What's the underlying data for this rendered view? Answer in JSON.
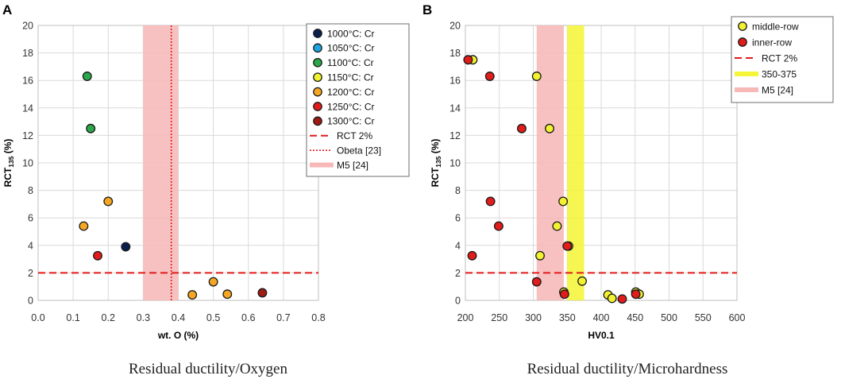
{
  "chart_data": [
    {
      "type": "scatter",
      "panel_label": "A",
      "xlabel": "wt. O (%)",
      "ylabel": "RCT",
      "ylabel_sub": "135",
      "ylabel_unit": "(%)",
      "xlim": [
        0.0,
        0.8
      ],
      "ylim": [
        0,
        20
      ],
      "x_ticks": [
        "0.0",
        "0.1",
        "0.2",
        "0.3",
        "0.4",
        "0.5",
        "0.6",
        "0.7",
        "0.8"
      ],
      "y_ticks": [
        "0",
        "2",
        "4",
        "6",
        "8",
        "10",
        "12",
        "14",
        "16",
        "18",
        "20"
      ],
      "caption": "Residual ductility/Oxygen",
      "series": [
        {
          "name": "1000°C: Cr",
          "color": "#0b1f4d",
          "points": [
            [
              0.25,
              3.9
            ]
          ]
        },
        {
          "name": "1050°C: Cr",
          "color": "#1fa3e0",
          "points": []
        },
        {
          "name": "1100°C: Cr",
          "color": "#2ba84a",
          "points": [
            [
              0.14,
              16.3
            ],
            [
              0.15,
              12.5
            ]
          ]
        },
        {
          "name": "1150°C: Cr",
          "color": "#f2f230",
          "points": []
        },
        {
          "name": "1200°C: Cr",
          "color": "#f5a623",
          "points": [
            [
              0.2,
              7.2
            ],
            [
              0.13,
              5.4
            ],
            [
              0.5,
              1.35
            ],
            [
              0.54,
              0.45
            ],
            [
              0.44,
              0.4
            ]
          ]
        },
        {
          "name": "1250°C: Cr",
          "color": "#e21b1b",
          "points": [
            [
              0.17,
              3.25
            ]
          ]
        },
        {
          "name": "1300°C: Cr",
          "color": "#9e1a12",
          "points": [
            [
              0.64,
              0.55
            ]
          ]
        }
      ],
      "reference_lines": [
        {
          "name": "RCT 2%",
          "axis": "y",
          "value": 2,
          "color": "#e21b1b",
          "style": "dashed"
        },
        {
          "name": "Obeta [23]",
          "axis": "x",
          "value": 0.38,
          "color": "#e21b1b",
          "style": "dotted"
        }
      ],
      "bands": [
        {
          "name": "M5 [24]",
          "axis": "x",
          "range": [
            0.3,
            0.4
          ],
          "color": "#f7b8b8"
        }
      ],
      "legend_order": [
        "1000°C: Cr",
        "1050°C: Cr",
        "1100°C: Cr",
        "1150°C: Cr",
        "1200°C: Cr",
        "1250°C: Cr",
        "1300°C: Cr",
        "RCT 2%",
        "Obeta [23]",
        "M5 [24]"
      ]
    },
    {
      "type": "scatter",
      "panel_label": "B",
      "xlabel": "HV0.1",
      "ylabel": "RCT",
      "ylabel_sub": "135",
      "ylabel_unit": "(%)",
      "xlim": [
        200,
        600
      ],
      "ylim": [
        0,
        20
      ],
      "x_ticks": [
        "200",
        "250",
        "300",
        "350",
        "400",
        "450",
        "500",
        "550",
        "600"
      ],
      "y_ticks": [
        "0",
        "2",
        "4",
        "6",
        "8",
        "10",
        "12",
        "14",
        "16",
        "18",
        "20"
      ],
      "caption": "Residual ductility/Microhardness",
      "series": [
        {
          "name": "middle-row",
          "color": "#f2f230",
          "points": [
            [
              211,
              17.5
            ],
            [
              305,
              16.3
            ],
            [
              324,
              12.5
            ],
            [
              344,
              7.2
            ],
            [
              335,
              5.4
            ],
            [
              310,
              3.25
            ],
            [
              372,
              1.4
            ],
            [
              410,
              0.4
            ],
            [
              416,
              0.15
            ],
            [
              451,
              0.6
            ],
            [
              456,
              0.45
            ],
            [
              345,
              0.6
            ],
            [
              352,
              3.95
            ]
          ]
        },
        {
          "name": "inner-row",
          "color": "#e21b1b",
          "points": [
            [
              204,
              17.5
            ],
            [
              236,
              16.3
            ],
            [
              283,
              12.5
            ],
            [
              237,
              7.2
            ],
            [
              249,
              5.4
            ],
            [
              210,
              3.25
            ],
            [
              350,
              3.95
            ],
            [
              305,
              1.35
            ],
            [
              346,
              0.45
            ],
            [
              431,
              0.1
            ],
            [
              451,
              0.45
            ]
          ]
        }
      ],
      "reference_lines": [
        {
          "name": "RCT 2%",
          "axis": "y",
          "value": 2,
          "color": "#e21b1b",
          "style": "dashed"
        }
      ],
      "bands": [
        {
          "name": "350-375",
          "axis": "x",
          "range": [
            350,
            375
          ],
          "color": "#f5f53a"
        },
        {
          "name": "M5 [24]",
          "axis": "x",
          "range": [
            305,
            345
          ],
          "color": "#f7b8b8"
        }
      ],
      "legend_order": [
        "middle-row",
        "inner-row",
        "RCT 2%",
        "350-375",
        "M5 [24]"
      ]
    }
  ]
}
